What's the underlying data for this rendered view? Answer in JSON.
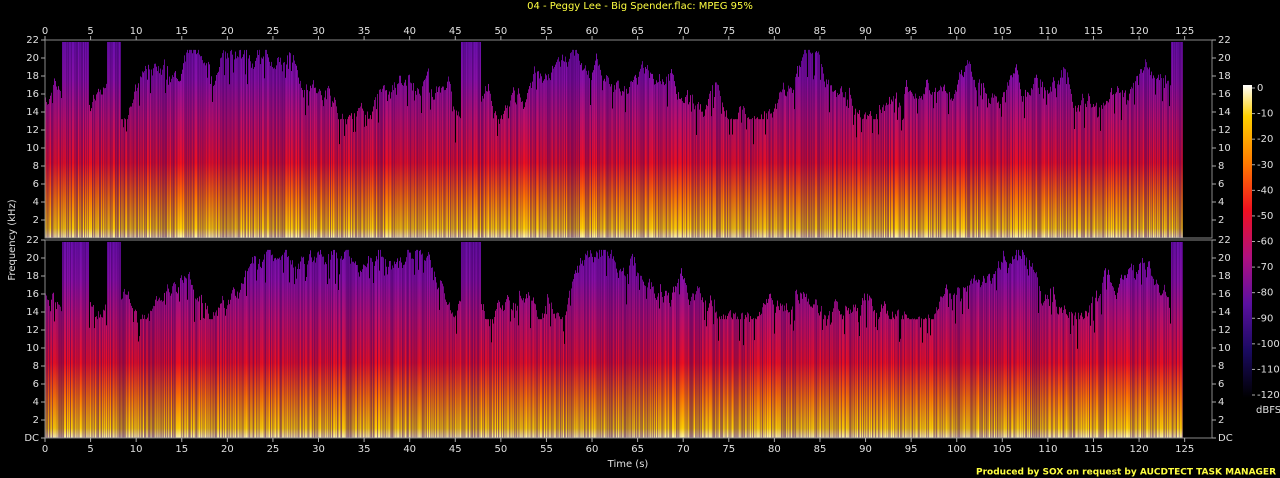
{
  "chart_data": {
    "type": "spectrogram",
    "title": "04 - Peggy Lee - Big Spender.flac: MPEG 95%",
    "xlabel": "Time (s)",
    "ylabel": "Frequency (kHz)",
    "xlim": [
      0,
      128
    ],
    "xticks": [
      0,
      5,
      10,
      15,
      20,
      25,
      30,
      35,
      40,
      45,
      50,
      55,
      60,
      65,
      70,
      75,
      80,
      85,
      90,
      95,
      100,
      105,
      110,
      115,
      120,
      125
    ],
    "ylim": [
      0,
      22
    ],
    "channels": [
      {
        "yticks": [
          2,
          4,
          6,
          8,
          10,
          12,
          14,
          16,
          18,
          20,
          22
        ]
      },
      {
        "yticks": [
          {
            "value": 0,
            "label": "DC"
          },
          2,
          4,
          6,
          8,
          10,
          12,
          14,
          16,
          18,
          20,
          22
        ]
      }
    ],
    "colorbar": {
      "label": "dBFS",
      "lim": [
        -120,
        0
      ],
      "ticks": [
        0,
        -10,
        -20,
        -30,
        -40,
        -50,
        -60,
        -70,
        -80,
        -90,
        -100,
        -110,
        -120
      ]
    },
    "footer": "Produced by SOX on request by AUCDTECT TASK MANAGER"
  }
}
